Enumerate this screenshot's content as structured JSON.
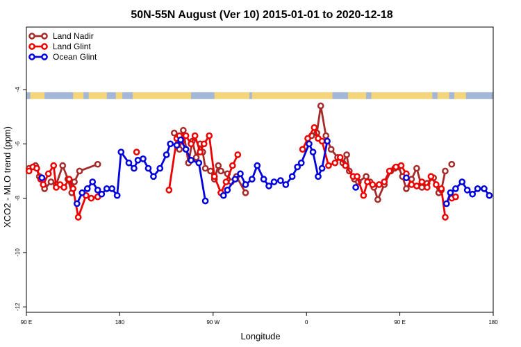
{
  "chart_data": {
    "type": "line",
    "title": "50N-55N August (Ver 10)   2015-01-01 to 2020-12-18",
    "xlabel": "Longitude",
    "ylabel": "XCO2 - MLO trend (ppm)",
    "xlim": [
      0,
      360
    ],
    "ylim": [
      -12.2,
      -1.7
    ],
    "xticks": [
      {
        "value": 0,
        "label": "90 E"
      },
      {
        "value": 72,
        "label": "180"
      },
      {
        "value": 144,
        "label": "90 W"
      },
      {
        "value": 216,
        "label": "0"
      },
      {
        "value": 288,
        "label": "90 E"
      },
      {
        "value": 360,
        "label": "180"
      }
    ],
    "yticks": [
      {
        "value": -4,
        "label": "-4"
      },
      {
        "value": -6,
        "label": "-6"
      },
      {
        "value": -8,
        "label": "-8"
      },
      {
        "value": -10,
        "label": "-10"
      },
      {
        "value": -12,
        "label": "-12"
      }
    ],
    "legend_position": "top-left",
    "land_strip": {
      "y_from": -4.1,
      "y_to": -4.35,
      "ocean_color": "#a3b8d8",
      "land_color": "#f5d57a"
    },
    "series": [
      {
        "name": "Land Nadir",
        "color": "#a52a2a",
        "segments": [
          [
            [
              2,
              -6.9
            ],
            [
              7,
              -6.8
            ],
            [
              10,
              -7.2
            ],
            [
              14,
              -7.65
            ],
            [
              19,
              -7.4
            ],
            [
              23,
              -7.5
            ],
            [
              28,
              -6.8
            ],
            [
              32,
              -7.3
            ],
            [
              35,
              -7.8
            ],
            [
              37,
              -7.4
            ],
            [
              41,
              -7.0
            ],
            [
              55,
              -6.75
            ]
          ],
          [
            [
              114,
              -5.6
            ],
            [
              118,
              -6.2
            ],
            [
              121,
              -5.5
            ],
            [
              125,
              -6.7
            ],
            [
              128,
              -5.9
            ],
            [
              131,
              -6.5
            ],
            [
              134,
              -6.0
            ],
            [
              136,
              -6.3
            ],
            [
              138,
              -6.9
            ],
            [
              142,
              -7.0
            ],
            [
              145,
              -7.3
            ],
            [
              148,
              -6.8
            ],
            [
              150,
              -7.0
            ],
            [
              155,
              -7.1
            ],
            [
              158,
              -7.4
            ],
            [
              162,
              -7.2
            ],
            [
              169,
              -7.8
            ]
          ],
          [
            [
              220,
              -5.7
            ],
            [
              224,
              -5.6
            ],
            [
              227,
              -4.6
            ],
            [
              231,
              -5.7
            ],
            [
              235,
              -6.2
            ],
            [
              240,
              -6.5
            ],
            [
              244,
              -6.7
            ],
            [
              247,
              -6.4
            ],
            [
              249,
              -7.0
            ],
            [
              253,
              -7.3
            ],
            [
              256,
              -7.4
            ],
            [
              262,
              -7.2
            ],
            [
              265,
              -7.4
            ],
            [
              268,
              -7.6
            ],
            [
              271,
              -8.05
            ],
            [
              276,
              -7.5
            ],
            [
              281,
              -7.0
            ],
            [
              284,
              -6.9
            ],
            [
              287,
              -6.85
            ],
            [
              290,
              -7.2
            ],
            [
              293,
              -7.65
            ],
            [
              297,
              -7.3
            ],
            [
              301,
              -6.9
            ],
            [
              305,
              -7.6
            ],
            [
              309,
              -7.45
            ],
            [
              314,
              -7.25
            ],
            [
              318,
              -7.8
            ],
            [
              320,
              -7.7
            ],
            [
              323,
              -7.0
            ]
          ],
          [
            [
              328,
              -6.75
            ]
          ]
        ]
      },
      {
        "name": "Land Glint",
        "color": "#ee0000",
        "segments": [
          [
            [
              2,
              -7.0
            ],
            [
              5,
              -6.85
            ],
            [
              8,
              -6.9
            ],
            [
              11,
              -7.3
            ],
            [
              13,
              -7.5
            ],
            [
              17,
              -7.1
            ],
            [
              21,
              -6.8
            ],
            [
              23,
              -7.6
            ],
            [
              26,
              -7.5
            ],
            [
              29,
              -7.6
            ],
            [
              33,
              -7.3
            ],
            [
              36,
              -7.65
            ],
            [
              40,
              -8.7
            ],
            [
              46,
              -7.9
            ],
            [
              50,
              -8.0
            ],
            [
              55,
              -7.95
            ]
          ],
          [
            [
              85,
              -6.3
            ]
          ],
          [
            [
              110,
              -7.7
            ],
            [
              116,
              -5.8
            ],
            [
              118,
              -5.7
            ],
            [
              120,
              -5.9
            ],
            [
              123,
              -5.7
            ],
            [
              127,
              -6.0
            ],
            [
              130,
              -5.7
            ],
            [
              134,
              -6.3
            ],
            [
              137,
              -6.0
            ],
            [
              141,
              -5.7
            ],
            [
              145,
              -7.2
            ],
            [
              150,
              -7.8
            ],
            [
              154,
              -7.4
            ],
            [
              159,
              -6.8
            ],
            [
              163,
              -6.4
            ]
          ],
          [
            [
              213,
              -6.2
            ],
            [
              217,
              -5.8
            ],
            [
              222,
              -5.4
            ],
            [
              225,
              -5.8
            ],
            [
              228,
              -5.9
            ],
            [
              233,
              -6.8
            ],
            [
              238,
              -6.7
            ],
            [
              242,
              -6.5
            ],
            [
              246,
              -6.8
            ],
            [
              252,
              -7.2
            ],
            [
              255,
              -7.2
            ],
            [
              260,
              -7.9
            ],
            [
              263,
              -7.4
            ],
            [
              267,
              -7.5
            ],
            [
              272,
              -7.5
            ],
            [
              276,
              -7.4
            ],
            [
              280,
              -7.0
            ],
            [
              285,
              -6.85
            ],
            [
              289,
              -6.8
            ],
            [
              293,
              -7.1
            ],
            [
              297,
              -7.5
            ],
            [
              301,
              -7.55
            ],
            [
              305,
              -7.4
            ],
            [
              309,
              -7.6
            ],
            [
              312,
              -7.2
            ],
            [
              316,
              -7.5
            ],
            [
              320,
              -7.65
            ],
            [
              323,
              -8.7
            ]
          ],
          [
            [
              328,
              -8.0
            ],
            [
              331,
              -7.95
            ]
          ]
        ]
      },
      {
        "name": "Ocean Glint",
        "color": "#0000dd",
        "segments": [
          [
            [
              12,
              -7.25
            ]
          ],
          [
            [
              39,
              -8.2
            ],
            [
              43,
              -7.8
            ],
            [
              47,
              -7.65
            ],
            [
              51,
              -7.4
            ],
            [
              55,
              -7.7
            ],
            [
              58,
              -7.85
            ],
            [
              62,
              -7.65
            ],
            [
              66,
              -7.65
            ],
            [
              70,
              -7.9
            ],
            [
              73,
              -6.3
            ],
            [
              79,
              -6.7
            ],
            [
              83,
              -6.9
            ],
            [
              86,
              -6.6
            ],
            [
              90,
              -6.55
            ],
            [
              94,
              -6.9
            ],
            [
              98,
              -7.2
            ],
            [
              103,
              -6.9
            ],
            [
              108,
              -6.4
            ],
            [
              111,
              -6.0
            ],
            [
              116,
              -6.05
            ],
            [
              119,
              -5.85
            ],
            [
              123,
              -6.2
            ],
            [
              127,
              -6.6
            ],
            [
              133,
              -6.7
            ],
            [
              138,
              -8.1
            ]
          ],
          [
            [
              152,
              -7.9
            ],
            [
              155,
              -7.7
            ],
            [
              161,
              -7.3
            ],
            [
              165,
              -7.1
            ],
            [
              169,
              -7.5
            ],
            [
              174,
              -7.3
            ],
            [
              178,
              -6.8
            ],
            [
              183,
              -7.3
            ],
            [
              187,
              -7.55
            ],
            [
              191,
              -7.4
            ],
            [
              196,
              -7.35
            ],
            [
              200,
              -7.5
            ],
            [
              205,
              -7.2
            ],
            [
              209,
              -6.85
            ],
            [
              212,
              -6.7
            ],
            [
              218,
              -6.0
            ],
            [
              221,
              -6.3
            ],
            [
              225,
              -7.2
            ],
            [
              228,
              -6.9
            ],
            [
              232,
              -5.9
            ]
          ],
          [
            [
              254,
              -7.6
            ]
          ],
          [
            [
              293,
              -7.25
            ]
          ],
          [
            [
              324,
              -8.2
            ],
            [
              327,
              -7.8
            ],
            [
              331,
              -7.65
            ],
            [
              336,
              -7.4
            ],
            [
              340,
              -7.7
            ],
            [
              344,
              -7.85
            ],
            [
              348,
              -7.65
            ],
            [
              353,
              -7.65
            ],
            [
              357,
              -7.9
            ]
          ]
        ]
      }
    ]
  }
}
